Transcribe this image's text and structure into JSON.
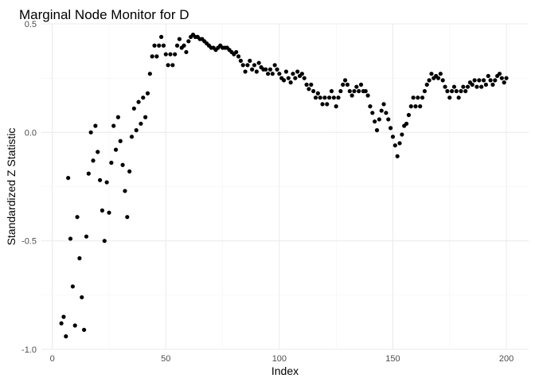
{
  "chart_data": {
    "type": "scatter",
    "title": "Marginal Node Monitor for D",
    "xlabel": "Index",
    "ylabel": "Standardized Z Statistic",
    "xlim": [
      -4.8,
      209.8
    ],
    "ylim": [
      -1.0,
      0.5
    ],
    "x_ticks": [
      0,
      50,
      100,
      150,
      200
    ],
    "x_tick_labels": [
      "0",
      "50",
      "100",
      "150",
      "200"
    ],
    "y_ticks": [
      -1.0,
      -0.5,
      0.0,
      0.5
    ],
    "y_tick_labels": [
      "-1.0",
      "-0.5",
      "0.0",
      "0.5"
    ],
    "grid": true,
    "point_color": "#000000",
    "x": [
      4,
      5,
      6,
      7,
      8,
      9,
      10,
      11,
      12,
      13,
      14,
      15,
      16,
      17,
      18,
      19,
      20,
      21,
      22,
      23,
      24,
      25,
      26,
      27,
      28,
      29,
      30,
      31,
      32,
      33,
      34,
      35,
      36,
      37,
      38,
      39,
      40,
      41,
      42,
      43,
      44,
      45,
      46,
      47,
      48,
      49,
      50,
      51,
      52,
      53,
      54,
      55,
      56,
      57,
      58,
      59,
      60,
      61,
      62,
      63,
      64,
      65,
      66,
      67,
      68,
      69,
      70,
      71,
      72,
      73,
      74,
      75,
      76,
      77,
      78,
      79,
      80,
      81,
      82,
      83,
      84,
      85,
      86,
      87,
      88,
      89,
      90,
      91,
      92,
      93,
      94,
      95,
      96,
      97,
      98,
      99,
      100,
      101,
      102,
      103,
      104,
      105,
      106,
      107,
      108,
      109,
      110,
      111,
      112,
      113,
      114,
      115,
      116,
      117,
      118,
      119,
      120,
      121,
      122,
      123,
      124,
      125,
      126,
      127,
      128,
      129,
      130,
      131,
      132,
      133,
      134,
      135,
      136,
      137,
      138,
      139,
      140,
      141,
      142,
      143,
      144,
      145,
      146,
      147,
      148,
      149,
      150,
      151,
      152,
      153,
      154,
      155,
      156,
      157,
      158,
      159,
      160,
      161,
      162,
      163,
      164,
      165,
      166,
      167,
      168,
      169,
      170,
      171,
      172,
      173,
      174,
      175,
      176,
      177,
      178,
      179,
      180,
      181,
      182,
      183,
      184,
      185,
      186,
      187,
      188,
      189,
      190,
      191,
      192,
      193,
      194,
      195,
      196,
      197,
      198,
      199,
      200
    ],
    "y": [
      -0.88,
      -0.85,
      -0.94,
      -0.21,
      -0.49,
      -0.71,
      -0.89,
      -0.39,
      -0.58,
      -0.76,
      -0.91,
      -0.48,
      -0.19,
      0.0,
      -0.13,
      0.03,
      -0.09,
      -0.22,
      -0.36,
      -0.5,
      -0.23,
      -0.37,
      -0.14,
      0.03,
      -0.08,
      0.07,
      -0.04,
      -0.15,
      -0.27,
      -0.39,
      -0.18,
      -0.02,
      0.11,
      0.01,
      0.14,
      0.04,
      0.16,
      0.07,
      0.18,
      0.27,
      0.35,
      0.4,
      0.35,
      0.4,
      0.44,
      0.4,
      0.36,
      0.31,
      0.36,
      0.31,
      0.36,
      0.4,
      0.43,
      0.39,
      0.4,
      0.37,
      0.42,
      0.44,
      0.45,
      0.44,
      0.44,
      0.43,
      0.43,
      0.42,
      0.41,
      0.4,
      0.39,
      0.39,
      0.38,
      0.39,
      0.4,
      0.39,
      0.39,
      0.39,
      0.38,
      0.37,
      0.36,
      0.37,
      0.35,
      0.33,
      0.31,
      0.28,
      0.31,
      0.33,
      0.29,
      0.31,
      0.28,
      0.32,
      0.3,
      0.29,
      0.29,
      0.27,
      0.29,
      0.27,
      0.31,
      0.29,
      0.27,
      0.25,
      0.24,
      0.28,
      0.25,
      0.23,
      0.27,
      0.25,
      0.28,
      0.26,
      0.27,
      0.25,
      0.22,
      0.2,
      0.22,
      0.19,
      0.16,
      0.18,
      0.16,
      0.13,
      0.16,
      0.13,
      0.16,
      0.19,
      0.16,
      0.12,
      0.16,
      0.19,
      0.22,
      0.24,
      0.22,
      0.19,
      0.17,
      0.19,
      0.21,
      0.19,
      0.22,
      0.19,
      0.19,
      0.17,
      0.12,
      0.09,
      0.05,
      0.01,
      0.06,
      0.1,
      0.13,
      0.09,
      0.06,
      0.02,
      -0.02,
      -0.06,
      -0.11,
      -0.05,
      -0.01,
      0.03,
      0.04,
      0.08,
      0.12,
      0.16,
      0.12,
      0.16,
      0.12,
      0.16,
      0.19,
      0.22,
      0.24,
      0.27,
      0.25,
      0.26,
      0.25,
      0.27,
      0.24,
      0.21,
      0.19,
      0.16,
      0.19,
      0.21,
      0.19,
      0.16,
      0.19,
      0.21,
      0.19,
      0.21,
      0.23,
      0.22,
      0.24,
      0.21,
      0.24,
      0.21,
      0.24,
      0.22,
      0.26,
      0.24,
      0.22,
      0.24,
      0.26,
      0.27,
      0.25,
      0.23,
      0.25
    ]
  }
}
